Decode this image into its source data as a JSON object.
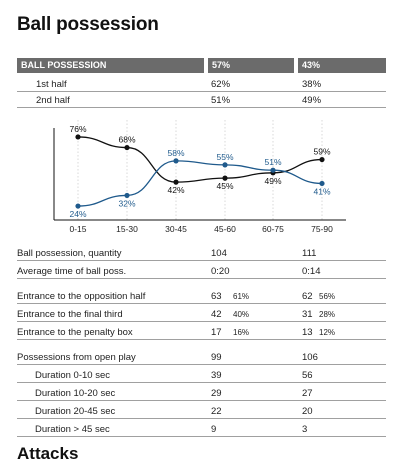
{
  "title": "Ball possession",
  "footer_title": "Attacks",
  "table_header": {
    "label": "BALL POSSESSION",
    "team1": "57%",
    "team2": "43%"
  },
  "halves": [
    {
      "label": "1st half",
      "team1": "62%",
      "team2": "38%"
    },
    {
      "label": "2nd half",
      "team1": "51%",
      "team2": "49%"
    }
  ],
  "chart_data": {
    "type": "line",
    "categories": [
      "0-15",
      "15-30",
      "30-45",
      "45-60",
      "60-75",
      "75-90"
    ],
    "series": [
      {
        "color": "#111111",
        "values": [
          76,
          68,
          42,
          45,
          49,
          59
        ],
        "labels": [
          "76%",
          "68%",
          "42%",
          "45%",
          "49%",
          "59%"
        ]
      },
      {
        "color": "#1f5a8c",
        "values": [
          24,
          32,
          58,
          55,
          51,
          41
        ],
        "labels": [
          "24%",
          "32%",
          "58%",
          "55%",
          "51%",
          "41%"
        ]
      }
    ],
    "ylim": [
      15,
      85
    ]
  },
  "stats": [
    {
      "label": "Ball possession, quantity",
      "team1": "104",
      "team1_pct": "",
      "team2": "111",
      "team2_pct": ""
    },
    {
      "label": "Average time of ball poss.",
      "team1": "0:20",
      "team1_pct": "",
      "team2": "0:14",
      "team2_pct": ""
    },
    {
      "label": "Entrance to the opposition half",
      "team1": "63",
      "team1_pct": "61%",
      "team2": "62",
      "team2_pct": "56%"
    },
    {
      "label": "Entrance to the final third",
      "team1": "42",
      "team1_pct": "40%",
      "team2": "31",
      "team2_pct": "28%"
    },
    {
      "label": "Entrance to the penalty box",
      "team1": "17",
      "team1_pct": "16%",
      "team2": "13",
      "team2_pct": "12%"
    },
    {
      "label": "Possessions from open play",
      "team1": "99",
      "team1_pct": "",
      "team2": "106",
      "team2_pct": ""
    },
    {
      "label": "Duration  0-10 sec",
      "team1": "39",
      "team1_pct": "",
      "team2": "56",
      "team2_pct": ""
    },
    {
      "label": "Duration  10-20 sec",
      "team1": "29",
      "team1_pct": "",
      "team2": "27",
      "team2_pct": ""
    },
    {
      "label": "Duration  20-45 sec",
      "team1": "22",
      "team1_pct": "",
      "team2": "20",
      "team2_pct": ""
    },
    {
      "label": "Duration  > 45 sec",
      "team1": "9",
      "team1_pct": "",
      "team2": "3",
      "team2_pct": ""
    }
  ]
}
